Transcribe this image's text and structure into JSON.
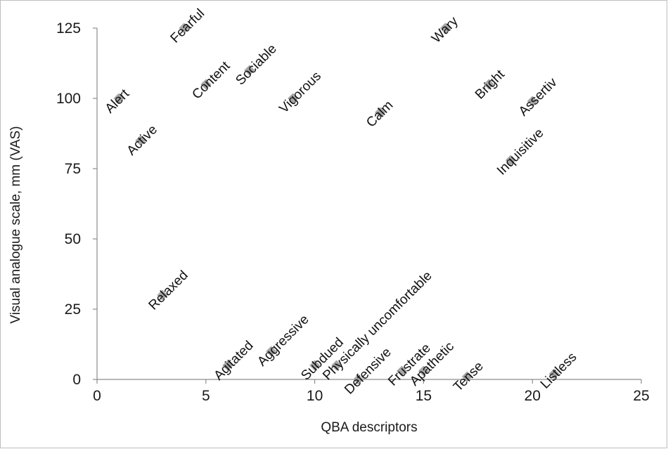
{
  "chart_data": {
    "type": "scatter",
    "xlabel": "QBA descriptors",
    "ylabel": "Visual analogue scale, mm (VAS)",
    "xlim": [
      0,
      25
    ],
    "ylim": [
      0,
      125
    ],
    "x_ticks": [
      0,
      5,
      10,
      15,
      20,
      25
    ],
    "y_ticks": [
      0,
      25,
      50,
      75,
      100,
      125
    ],
    "grid": false,
    "marker": "diamond",
    "marker_color": "#a6a6a6",
    "points": [
      {
        "label": "Alert",
        "x": 1,
        "y": 100
      },
      {
        "label": "Active",
        "x": 2,
        "y": 85
      },
      {
        "label": "Relaxed",
        "x": 3,
        "y": 30
      },
      {
        "label": "Fearful",
        "x": 4,
        "y": 125
      },
      {
        "label": "Content",
        "x": 5,
        "y": 105
      },
      {
        "label": "Agitated",
        "x": 6,
        "y": 5
      },
      {
        "label": "Sociable",
        "x": 7,
        "y": 110
      },
      {
        "label": "Aggressive",
        "x": 8,
        "y": 10
      },
      {
        "label": "Vigorous",
        "x": 9,
        "y": 100
      },
      {
        "label": "Subdued",
        "x": 10,
        "y": 5
      },
      {
        "label": "Physically uncomfortable",
        "x": 11,
        "y": 5
      },
      {
        "label": "Defensive",
        "x": 12,
        "y": 0
      },
      {
        "label": "Calm",
        "x": 13,
        "y": 95
      },
      {
        "label": "Frustrate",
        "x": 14,
        "y": 3
      },
      {
        "label": "Apathetic",
        "x": 15,
        "y": 3
      },
      {
        "label": "Wary",
        "x": 16,
        "y": 125
      },
      {
        "label": "Tense",
        "x": 17,
        "y": 1
      },
      {
        "label": "Bright",
        "x": 18,
        "y": 105
      },
      {
        "label": "Inquisitive",
        "x": 19,
        "y": 78
      },
      {
        "label": "Assertiv",
        "x": 20,
        "y": 99
      },
      {
        "label": "Listless",
        "x": 21,
        "y": 2
      }
    ]
  }
}
